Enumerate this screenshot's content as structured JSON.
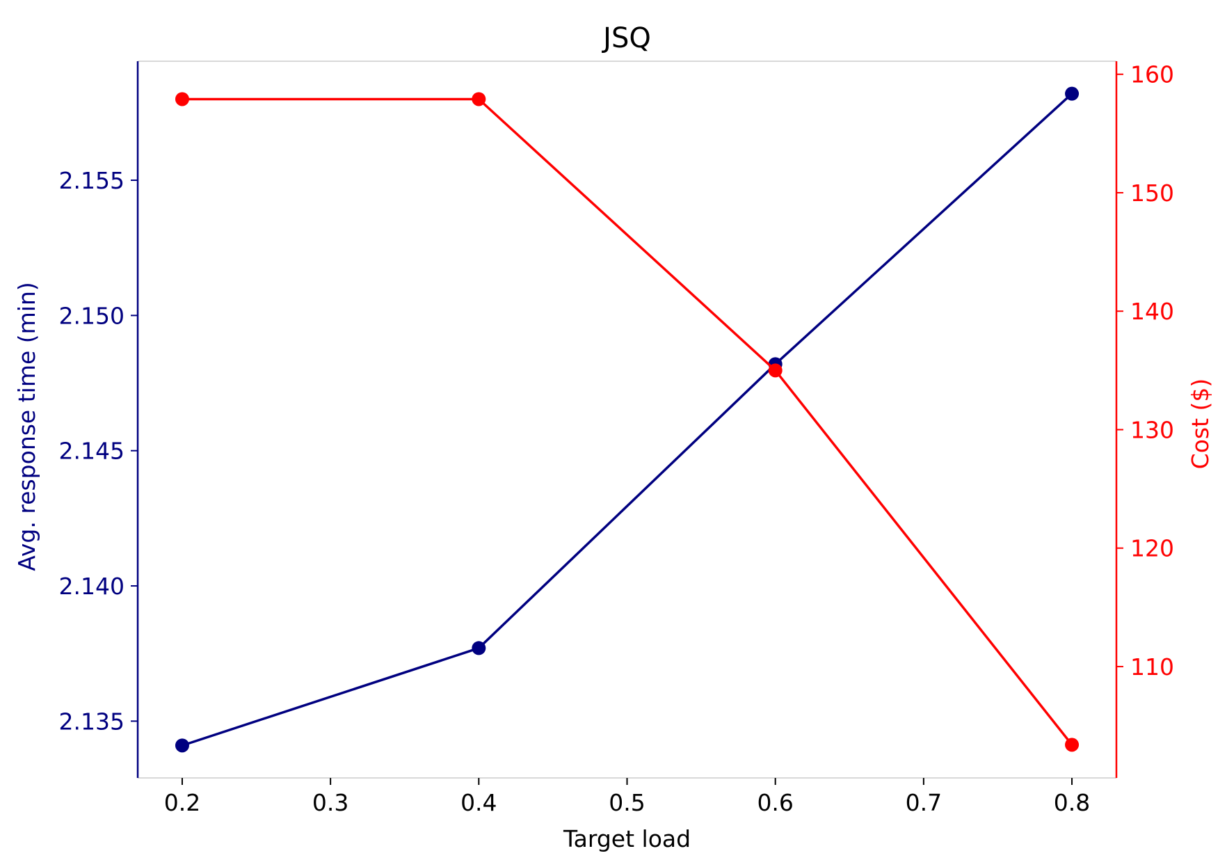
{
  "chart_data": {
    "type": "line",
    "title": "JSQ",
    "xlabel": "Target load",
    "ylabel_left": "Avg. response time (min)",
    "ylabel_right": "Cost ($)",
    "x": [
      0.2,
      0.4,
      0.6,
      0.8
    ],
    "xlim": [
      0.17,
      0.83
    ],
    "x_ticks": [
      0.2,
      0.3,
      0.4,
      0.5,
      0.6,
      0.7,
      0.8
    ],
    "x_tick_labels": [
      "0.2",
      "0.3",
      "0.4",
      "0.5",
      "0.6",
      "0.7",
      "0.8"
    ],
    "ylim_left": [
      2.1329,
      2.1594
    ],
    "left_ticks": [
      2.135,
      2.14,
      2.145,
      2.15,
      2.155
    ],
    "left_tick_labels": [
      "2.135",
      "2.140",
      "2.145",
      "2.150",
      "2.155"
    ],
    "ylim_right": [
      100.6,
      161.1
    ],
    "right_ticks": [
      110,
      120,
      130,
      140,
      150,
      160
    ],
    "right_tick_labels": [
      "110",
      "120",
      "130",
      "140",
      "150",
      "160"
    ],
    "grid": false,
    "legend": "none",
    "series": [
      {
        "axis": "left",
        "color": "#000080",
        "marker": "circle",
        "values": [
          2.1341,
          2.1377,
          2.1482,
          2.1582
        ]
      },
      {
        "axis": "right",
        "color": "#ff0000",
        "marker": "circle",
        "values": [
          157.9,
          157.9,
          135.0,
          103.4
        ]
      }
    ]
  }
}
